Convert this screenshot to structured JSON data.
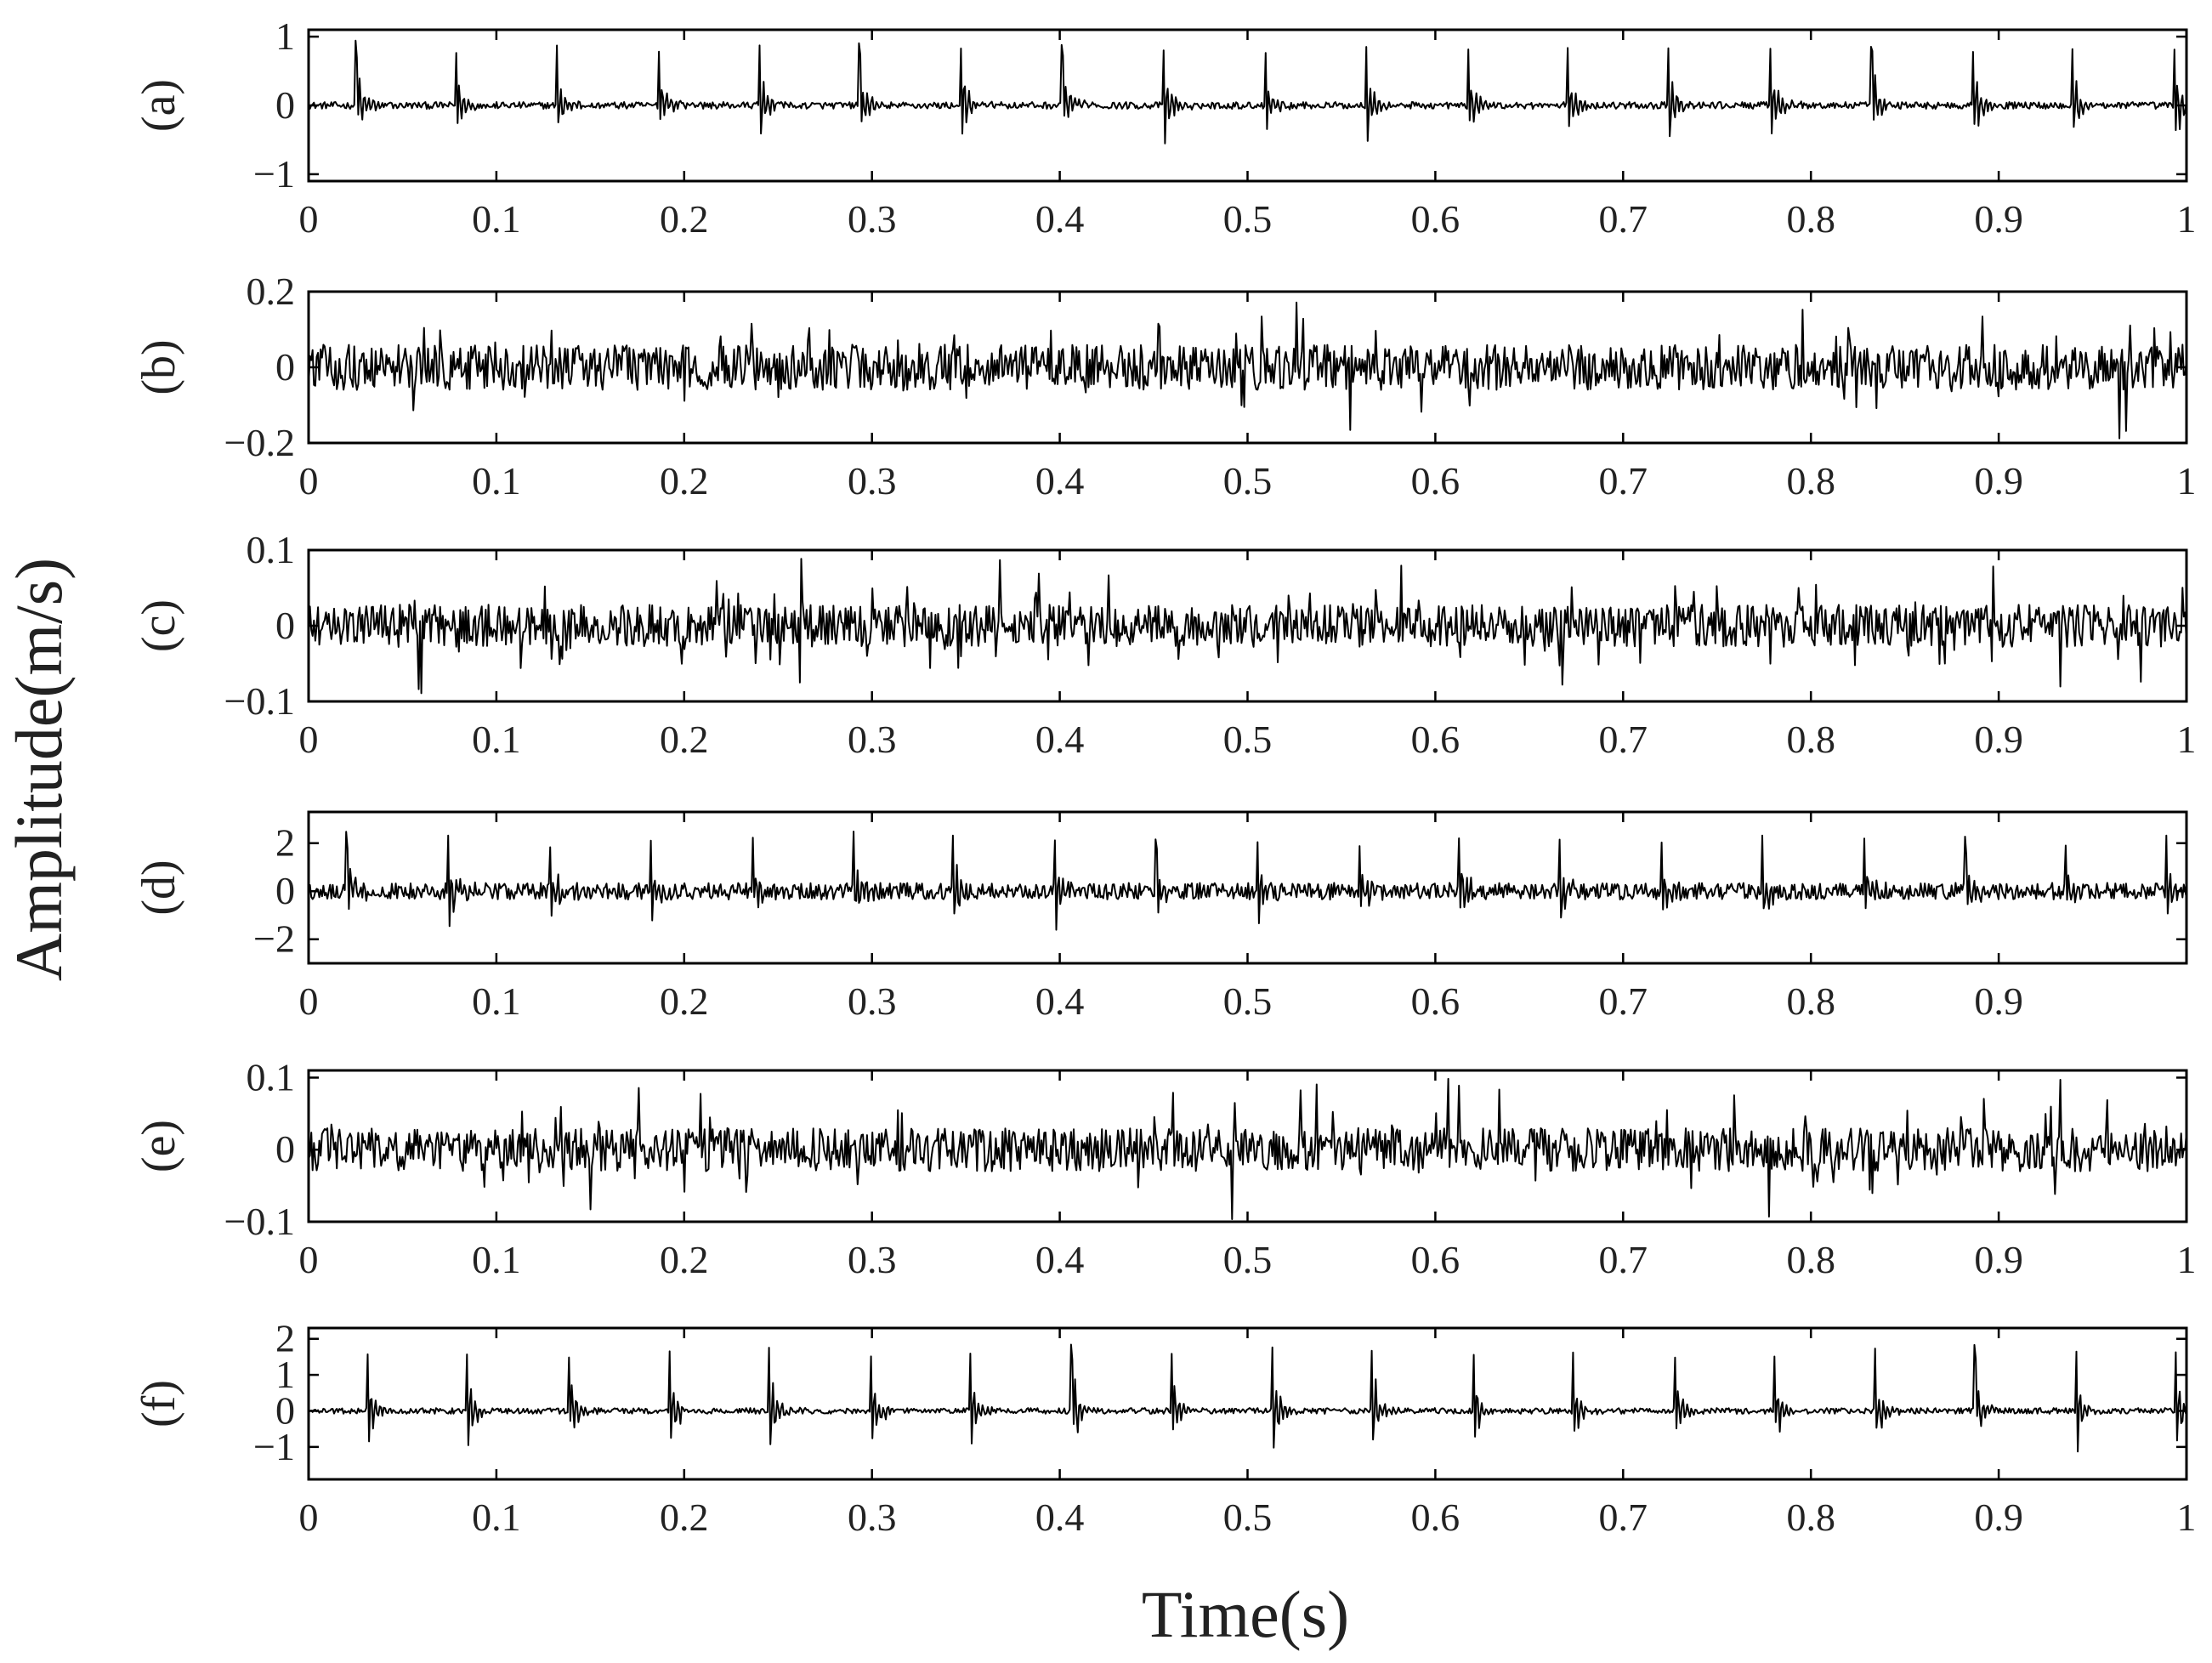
{
  "figure": {
    "ylabel": "Amplitude(m/s)",
    "xlabel": "Time(s)",
    "colors": {
      "signal": "#000000",
      "axes": "#000000",
      "background": "#ffffff"
    }
  },
  "chart_data": [
    {
      "type": "line",
      "label": "(a)",
      "xlim": [
        0,
        1
      ],
      "ylim": [
        -1.1,
        1.1
      ],
      "xticks": [
        0,
        0.1,
        0.2,
        0.3,
        0.4,
        0.5,
        0.6,
        0.7,
        0.8,
        0.9,
        1
      ],
      "xtick_labels": [
        "0",
        "0.1",
        "0.2",
        "0.3",
        "0.4",
        "0.5",
        "0.6",
        "0.7",
        "0.8",
        "0.9",
        "1"
      ],
      "yticks": [
        -1,
        0,
        1
      ],
      "ytick_labels": [
        "−1",
        "0",
        "1"
      ],
      "signal": {
        "pattern": "periodic_impulses",
        "noise_amplitude": 0.05,
        "peak_amplitude": 0.9,
        "impulse_times": [
          0.025,
          0.078,
          0.132,
          0.186,
          0.24,
          0.293,
          0.347,
          0.401,
          0.455,
          0.509,
          0.563,
          0.617,
          0.67,
          0.724,
          0.778,
          0.832,
          0.886,
          0.939,
          0.993
        ]
      }
    },
    {
      "type": "line",
      "label": "(b)",
      "xlim": [
        0,
        1
      ],
      "ylim": [
        -0.2,
        0.2
      ],
      "xticks": [
        0,
        0.1,
        0.2,
        0.3,
        0.4,
        0.5,
        0.6,
        0.7,
        0.8,
        0.9,
        1
      ],
      "xtick_labels": [
        "0",
        "0.1",
        "0.2",
        "0.3",
        "0.4",
        "0.5",
        "0.6",
        "0.7",
        "0.8",
        "0.9",
        "1"
      ],
      "yticks": [
        -0.2,
        0,
        0.2
      ],
      "ytick_labels": [
        "−0.2",
        "0",
        "0.2"
      ],
      "signal": {
        "pattern": "broadband_noise",
        "noise_amplitude": 0.06,
        "peak_amplitude": 0.2
      }
    },
    {
      "type": "line",
      "label": "(c)",
      "xlim": [
        0,
        1
      ],
      "ylim": [
        -0.1,
        0.1
      ],
      "xticks": [
        0,
        0.1,
        0.2,
        0.3,
        0.4,
        0.5,
        0.6,
        0.7,
        0.8,
        0.9,
        1
      ],
      "xtick_labels": [
        "0",
        "0.1",
        "0.2",
        "0.3",
        "0.4",
        "0.5",
        "0.6",
        "0.7",
        "0.8",
        "0.9",
        "1"
      ],
      "yticks": [
        -0.1,
        0,
        0.1
      ],
      "ytick_labels": [
        "−0.1",
        "0",
        "0.1"
      ],
      "signal": {
        "pattern": "broadband_noise",
        "noise_amplitude": 0.028,
        "peak_amplitude": 0.09
      }
    },
    {
      "type": "line",
      "label": "(d)",
      "xlim": [
        0,
        1
      ],
      "ylim": [
        -3,
        3.3
      ],
      "xticks": [
        0,
        0.1,
        0.2,
        0.3,
        0.4,
        0.5,
        0.6,
        0.7,
        0.8,
        0.9
      ],
      "xtick_labels": [
        "0",
        "0.1",
        "0.2",
        "0.3",
        "0.4",
        "0.5",
        "0.6",
        "0.7",
        "0.8",
        "0.9"
      ],
      "yticks": [
        -2,
        0,
        2
      ],
      "ytick_labels": [
        "−2",
        "0",
        "2"
      ],
      "signal": {
        "pattern": "periodic_impulses",
        "noise_amplitude": 0.35,
        "peak_amplitude": 2.3,
        "impulse_times": [
          0.02,
          0.074,
          0.128,
          0.182,
          0.236,
          0.29,
          0.343,
          0.397,
          0.451,
          0.505,
          0.559,
          0.612,
          0.666,
          0.72,
          0.774,
          0.828,
          0.882,
          0.935,
          0.989
        ]
      }
    },
    {
      "type": "line",
      "label": "(e)",
      "xlim": [
        0,
        1
      ],
      "ylim": [
        -0.1,
        0.11
      ],
      "xticks": [
        0,
        0.1,
        0.2,
        0.3,
        0.4,
        0.5,
        0.6,
        0.7,
        0.8,
        0.9,
        1
      ],
      "xtick_labels": [
        "0",
        "0.1",
        "0.2",
        "0.3",
        "0.4",
        "0.5",
        "0.6",
        "0.7",
        "0.8",
        "0.9",
        "1"
      ],
      "yticks": [
        -0.1,
        0,
        0.1
      ],
      "ytick_labels": [
        "−0.1",
        "0",
        "0.1"
      ],
      "signal": {
        "pattern": "broadband_noise",
        "noise_amplitude": 0.03,
        "peak_amplitude": 0.1
      }
    },
    {
      "type": "line",
      "label": "(f)",
      "xlim": [
        0,
        1
      ],
      "ylim": [
        -1.9,
        2.3
      ],
      "xticks": [
        0,
        0.1,
        0.2,
        0.3,
        0.4,
        0.5,
        0.6,
        0.7,
        0.8,
        0.9,
        1
      ],
      "xtick_labels": [
        "0",
        "0.1",
        "0.2",
        "0.3",
        "0.4",
        "0.5",
        "0.6",
        "0.7",
        "0.8",
        "0.9",
        "1"
      ],
      "yticks": [
        -1,
        0,
        1,
        2
      ],
      "ytick_labels": [
        "−1",
        "0",
        "1",
        "2"
      ],
      "signal": {
        "pattern": "periodic_impulses",
        "noise_amplitude": 0.08,
        "peak_amplitude": 1.8,
        "impulse_times": [
          0.031,
          0.084,
          0.138,
          0.192,
          0.245,
          0.299,
          0.352,
          0.406,
          0.459,
          0.513,
          0.566,
          0.62,
          0.673,
          0.727,
          0.78,
          0.834,
          0.887,
          0.941,
          0.994
        ]
      }
    }
  ]
}
